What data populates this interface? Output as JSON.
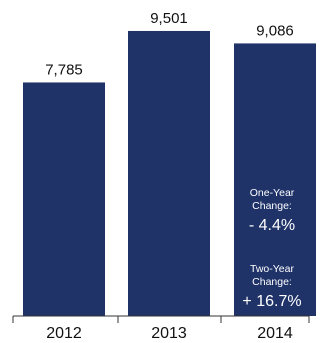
{
  "chart_data": {
    "type": "bar",
    "categories": [
      "2012",
      "2013",
      "2014"
    ],
    "values": [
      7785,
      9501,
      9086
    ],
    "value_labels": [
      "7,785",
      "9,501",
      "9,086"
    ],
    "ylim": [
      0,
      10000
    ],
    "bar_color": "#1f3369",
    "grid": false,
    "annotations": {
      "one_year_line1": "One-Year",
      "one_year_line2": "Change:",
      "one_year_value": "- 4.4%",
      "two_year_line1": "Two-Year",
      "two_year_line2": "Change:",
      "two_year_value": "+ 16.7%"
    }
  }
}
